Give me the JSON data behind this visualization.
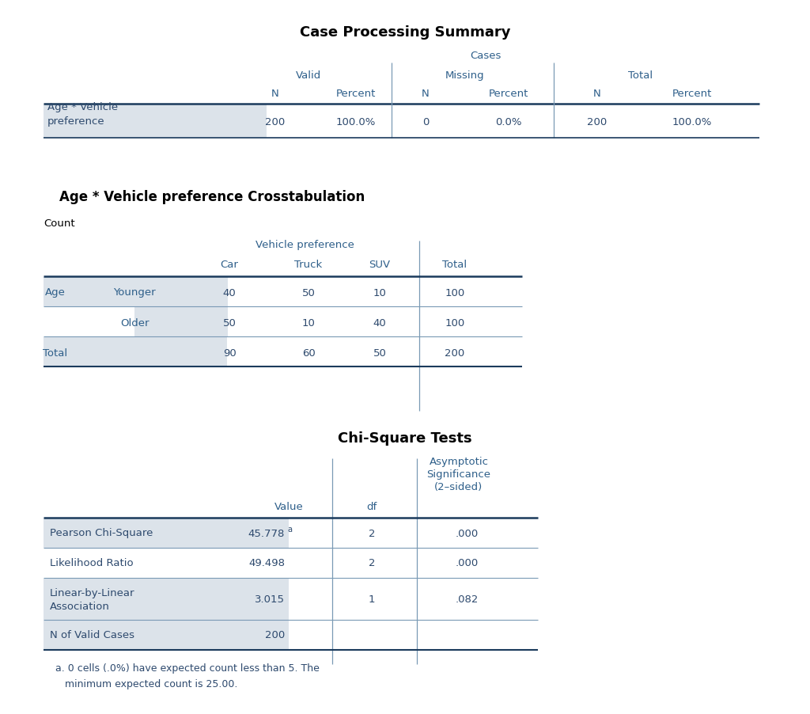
{
  "bg_color": "#ffffff",
  "text_color": "#2e4a6e",
  "header_color": "#2e5f8a",
  "label_bg": "#dce3ea",
  "dark_line_color": "#1a3a5c",
  "light_line_color": "#7a9ab5",
  "table1_title": "Case Processing Summary",
  "table2_title": "Age * Vehicle preference Crosstabulation",
  "table2_count_label": "Count",
  "table2_veh_pref_label": "Vehicle preference",
  "table3_title": "Chi-Square Tests",
  "table3_footnote_line1": "a. 0 cells (.0%) have expected count less than 5. The",
  "table3_footnote_line2": "   minimum expected count is 25.00."
}
